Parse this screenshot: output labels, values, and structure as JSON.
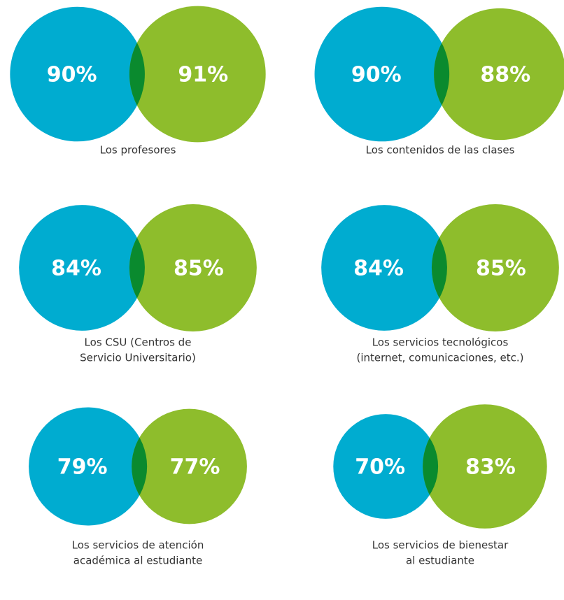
{
  "chart_data": [
    {
      "type": "venn",
      "title": [
        "Los profesores"
      ],
      "values": [
        90,
        91
      ],
      "value_labels": [
        "90%",
        "91%"
      ],
      "colors": [
        "#00acd0",
        "#8ebd2c"
      ],
      "overlap_color": "#0a8a2e"
    },
    {
      "type": "venn",
      "title": [
        "Los contenidos de las clases"
      ],
      "values": [
        90,
        88
      ],
      "value_labels": [
        "90%",
        "88%"
      ],
      "colors": [
        "#00acd0",
        "#8ebd2c"
      ],
      "overlap_color": "#0a8a2e"
    },
    {
      "type": "venn",
      "title": [
        "Los CSU (Centros de",
        "Servicio Universitario)"
      ],
      "values": [
        84,
        85
      ],
      "value_labels": [
        "84%",
        "85%"
      ],
      "colors": [
        "#00acd0",
        "#8ebd2c"
      ],
      "overlap_color": "#0a8a2e"
    },
    {
      "type": "venn",
      "title": [
        "Los servicios tecnológicos",
        "(internet, comunicaciones, etc.)"
      ],
      "values": [
        84,
        85
      ],
      "value_labels": [
        "84%",
        "85%"
      ],
      "colors": [
        "#00acd0",
        "#8ebd2c"
      ],
      "overlap_color": "#0a8a2e"
    },
    {
      "type": "venn",
      "title": [
        "Los servicios de atención",
        "académica al estudiante"
      ],
      "values": [
        79,
        77
      ],
      "value_labels": [
        "79%",
        "77%"
      ],
      "colors": [
        "#00acd0",
        "#8ebd2c"
      ],
      "overlap_color": "#0a8a2e"
    },
    {
      "type": "venn",
      "title": [
        "Los servicios de bienestar",
        "al estudiante"
      ],
      "values": [
        70,
        83
      ],
      "value_labels": [
        "70%",
        "83%"
      ],
      "colors": [
        "#00acd0",
        "#8ebd2c"
      ],
      "overlap_color": "#0a8a2e"
    }
  ]
}
